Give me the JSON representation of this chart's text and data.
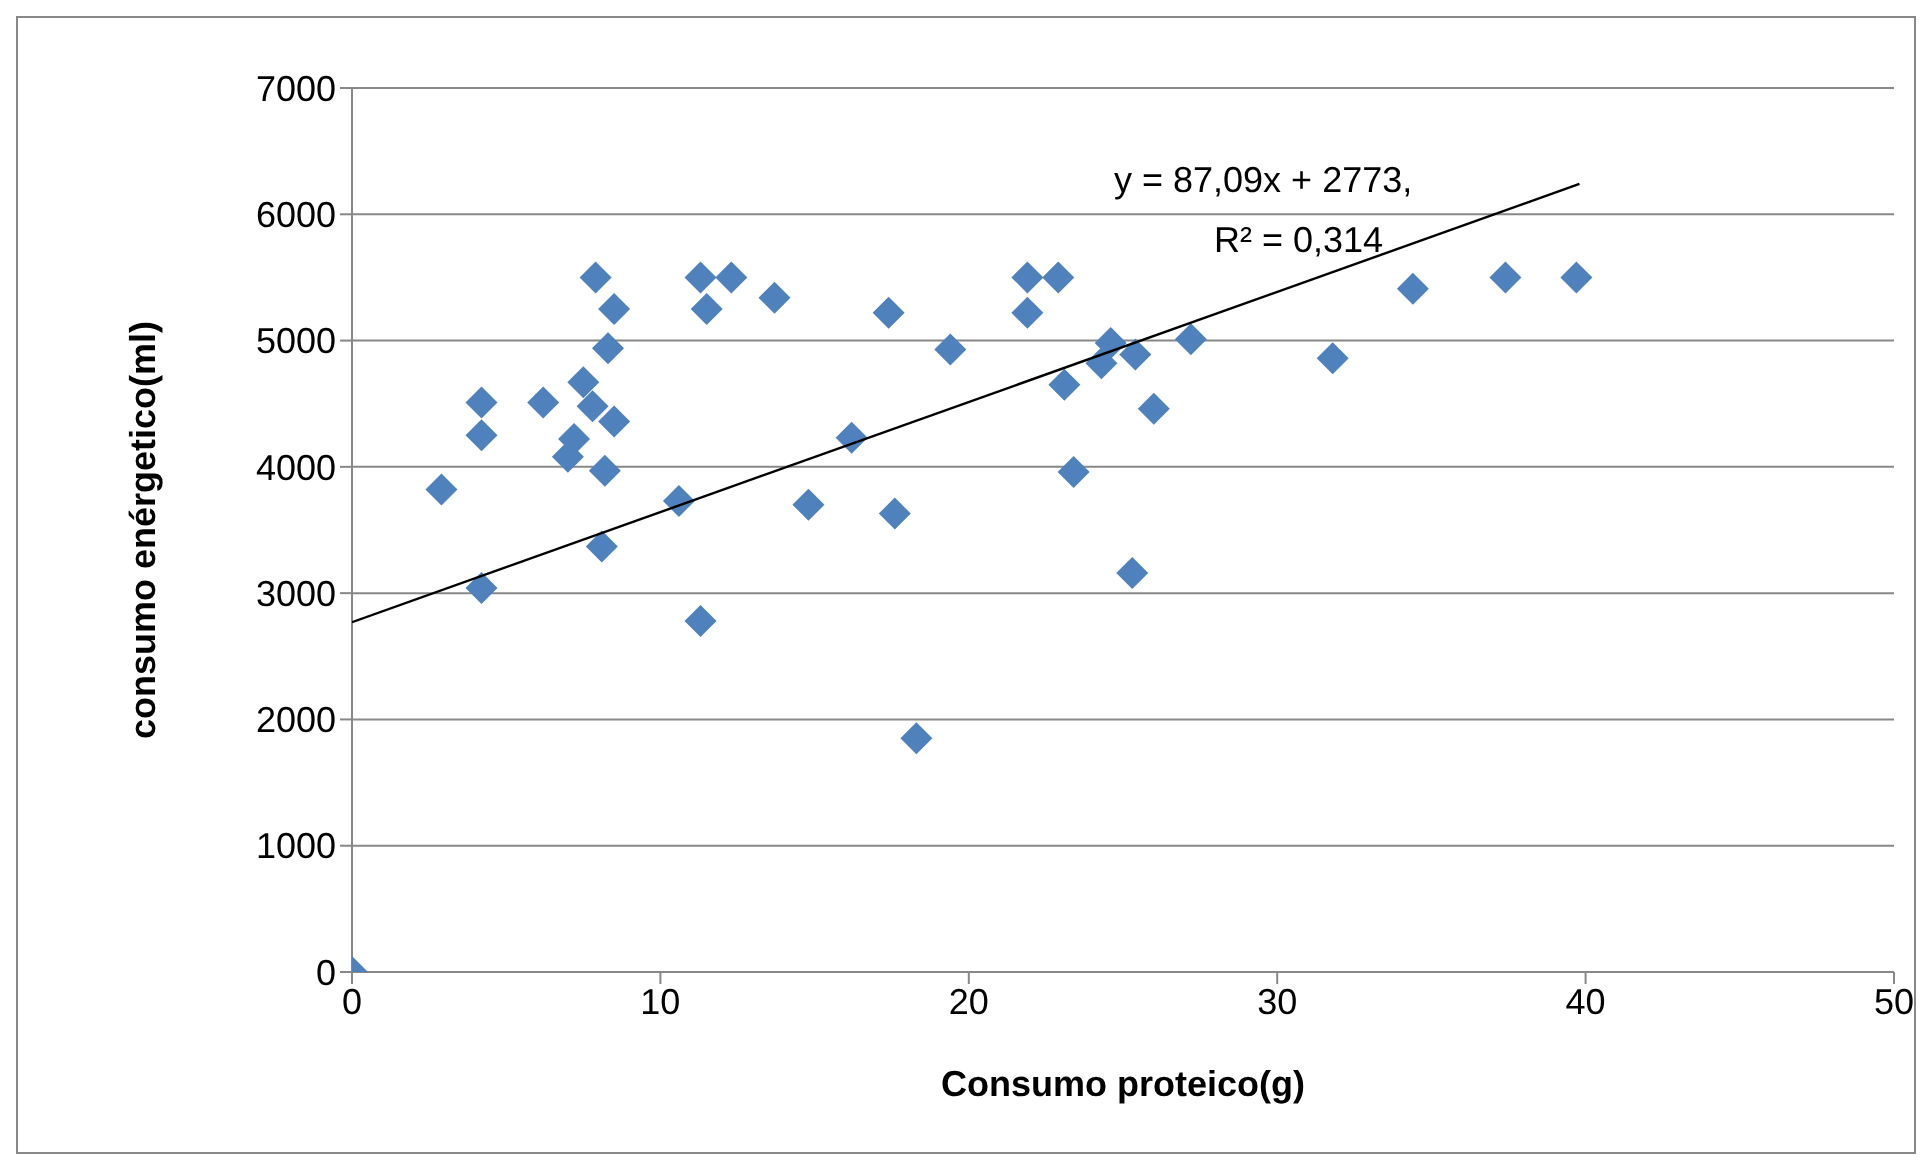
{
  "chart_data": {
    "type": "scatter",
    "xlabel": "Consumo proteico(g)",
    "ylabel": "consumo enérgetico(ml)",
    "xlim": [
      0,
      50
    ],
    "xticks": [
      0,
      10,
      20,
      30,
      40,
      50
    ],
    "ylim": [
      0,
      7000
    ],
    "yticks": [
      0,
      1000,
      2000,
      3000,
      4000,
      5000,
      6000,
      7000
    ],
    "grid": "y",
    "marker": "diamond",
    "series": [
      {
        "color": "#4f81bd",
        "x": [
          0,
          2.9,
          4.2,
          4.2,
          4.2,
          6.2,
          7.0,
          7.2,
          7.5,
          7.9,
          7.8,
          8.2,
          8.1,
          8.3,
          8.5,
          8.5,
          10.6,
          11.3,
          11.5,
          11.3,
          12.3,
          13.7,
          14.8,
          16.2,
          17.4,
          17.6,
          18.3,
          19.4,
          21.9,
          21.9,
          22.9,
          23.1,
          23.4,
          24.3,
          24.6,
          25.4,
          25.3,
          26.0,
          27.2,
          31.8,
          34.4,
          37.4,
          39.7
        ],
        "values": [
          0,
          3820,
          4510,
          4250,
          3040,
          4510,
          4080,
          4220,
          4670,
          5500,
          4480,
          3970,
          3370,
          4940,
          5250,
          4360,
          3730,
          5500,
          5250,
          2780,
          5500,
          5340,
          3700,
          4230,
          5220,
          3630,
          1850,
          4930,
          5500,
          5220,
          5500,
          4650,
          3960,
          4820,
          4980,
          4890,
          3160,
          4460,
          5010,
          4860,
          5410,
          5500,
          5500
        ]
      },
      {
        "type": "line",
        "color": "#000000",
        "marker": "none",
        "x": [
          0,
          39.8
        ],
        "values": [
          2770,
          6240
        ]
      }
    ],
    "annotations": [
      "y = 87,09x + 2773,",
      "R² = 0,314"
    ]
  }
}
